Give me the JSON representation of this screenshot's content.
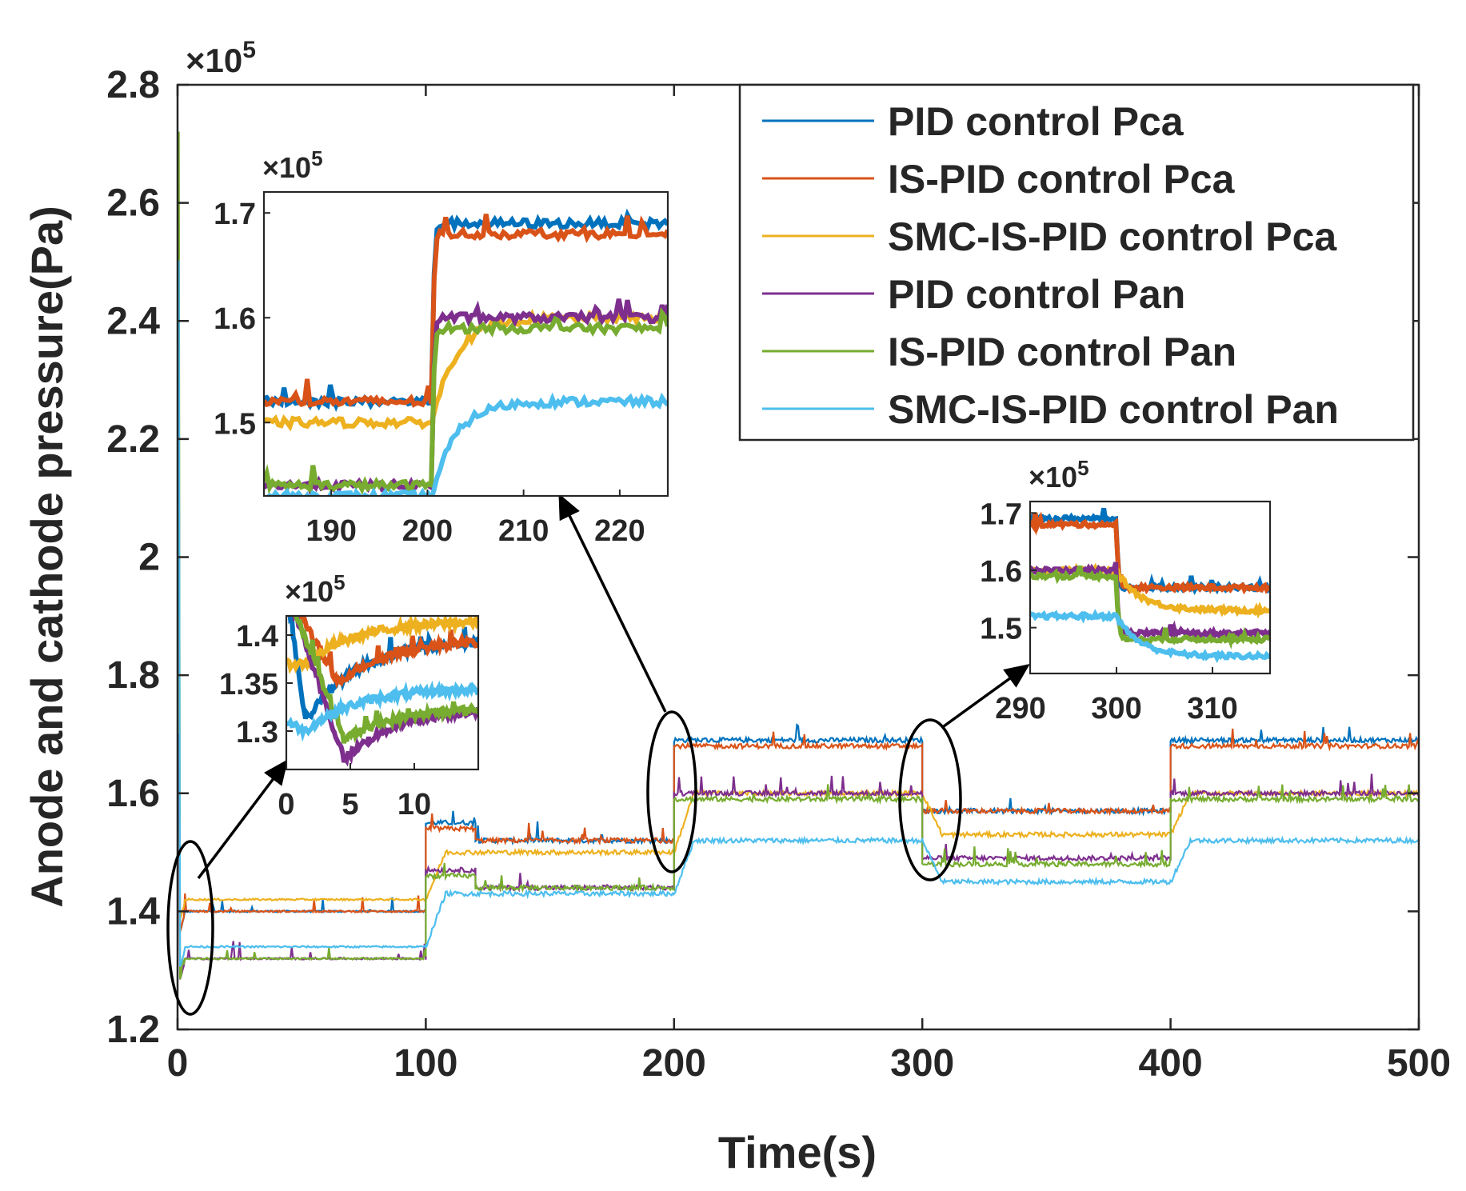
{
  "chart_data": {
    "type": "line",
    "xlabel": "Time(s)",
    "ylabel": "Anode and cathode pressure(Pa)",
    "exponent_label": "×10",
    "exponent_power": "5",
    "xlim": [
      0,
      500
    ],
    "ylim": [
      1.2,
      2.8
    ],
    "xticks": [
      0,
      100,
      200,
      300,
      400,
      500
    ],
    "yticks": [
      1.2,
      1.4,
      1.6,
      1.8,
      2,
      2.2,
      2.4,
      2.6,
      2.8
    ],
    "xtick_labels": [
      "0",
      "100",
      "200",
      "300",
      "400",
      "500"
    ],
    "ytick_labels": [
      "1.2",
      "1.4",
      "1.6",
      "1.8",
      "2",
      "2.2",
      "2.4",
      "2.6",
      "2.8"
    ],
    "legend_position": "top-right",
    "colors": {
      "PID control Pca": "#0072BD",
      "IS-PID control Pca": "#D95319",
      "SMC-IS-PID control Pca": "#EDB120",
      "PID control Pan": "#7E2F8E",
      "IS-PID control Pan": "#77AC30",
      "SMC-IS-PID control Pan": "#4DBEEE"
    },
    "series": [
      {
        "name": "PID control Pca",
        "segments": [
          [
            0,
            100,
            1.4
          ],
          [
            100,
            120,
            1.55
          ],
          [
            120,
            200,
            1.52
          ],
          [
            200,
            300,
            1.69
          ],
          [
            300,
            400,
            1.57
          ],
          [
            400,
            500,
            1.69
          ]
        ]
      },
      {
        "name": "IS-PID control Pca",
        "segments": [
          [
            0,
            100,
            1.4
          ],
          [
            100,
            120,
            1.54
          ],
          [
            120,
            200,
            1.52
          ],
          [
            200,
            300,
            1.68
          ],
          [
            300,
            400,
            1.57
          ],
          [
            400,
            500,
            1.68
          ]
        ]
      },
      {
        "name": "SMC-IS-PID control Pca",
        "segments": [
          [
            0,
            100,
            1.42
          ],
          [
            100,
            200,
            1.5
          ],
          [
            200,
            300,
            1.6
          ],
          [
            300,
            400,
            1.53
          ],
          [
            400,
            500,
            1.6
          ]
        ]
      },
      {
        "name": "PID control Pan",
        "segments": [
          [
            0,
            100,
            1.32
          ],
          [
            100,
            120,
            1.47
          ],
          [
            120,
            200,
            1.44
          ],
          [
            200,
            300,
            1.6
          ],
          [
            300,
            400,
            1.49
          ],
          [
            400,
            500,
            1.6
          ]
        ]
      },
      {
        "name": "IS-PID control Pan",
        "segments": [
          [
            0,
            100,
            1.32
          ],
          [
            100,
            120,
            1.46
          ],
          [
            120,
            200,
            1.44
          ],
          [
            200,
            300,
            1.59
          ],
          [
            300,
            400,
            1.48
          ],
          [
            400,
            500,
            1.59
          ]
        ]
      },
      {
        "name": "SMC-IS-PID control Pan",
        "segments": [
          [
            0,
            100,
            1.34
          ],
          [
            100,
            200,
            1.43
          ],
          [
            200,
            300,
            1.52
          ],
          [
            300,
            400,
            1.45
          ],
          [
            400,
            500,
            1.52
          ]
        ]
      }
    ],
    "insets": [
      {
        "id": "inset-start",
        "xlim": [
          0,
          15
        ],
        "ylim": [
          1.26,
          1.42
        ],
        "xticks": [
          0,
          5,
          10
        ],
        "xtick_labels": [
          "0",
          "5",
          "10"
        ],
        "yticks": [
          1.3,
          1.35,
          1.4
        ],
        "ytick_labels": [
          "1.3",
          "1.35",
          "1.4"
        ],
        "exponent_label": "×10",
        "exponent_power": "5",
        "step_time": 0,
        "levels_before": [
          1.45,
          1.45,
          1.37,
          1.45,
          1.45,
          1.31
        ],
        "levels_after": [
          1.395,
          1.395,
          1.415,
          1.325,
          1.325,
          1.345
        ],
        "dips": [
          1.31,
          1.35,
          1.37,
          1.27,
          1.29,
          1.3
        ]
      },
      {
        "id": "inset-200",
        "xlim": [
          183,
          225
        ],
        "ylim": [
          1.43,
          1.72
        ],
        "xticks": [
          190,
          200,
          210,
          220
        ],
        "xtick_labels": [
          "190",
          "200",
          "210",
          "220"
        ],
        "yticks": [
          1.5,
          1.6,
          1.7
        ],
        "ytick_labels": [
          "1.5",
          "1.6",
          "1.7"
        ],
        "exponent_label": "×10",
        "exponent_power": "5",
        "step_time": 200.5,
        "levels_before": [
          1.52,
          1.52,
          1.5,
          1.44,
          1.44,
          1.43
        ],
        "levels_after": [
          1.69,
          1.68,
          1.6,
          1.6,
          1.59,
          1.52
        ]
      },
      {
        "id": "inset-300",
        "xlim": [
          291,
          316
        ],
        "ylim": [
          1.42,
          1.72
        ],
        "xticks": [
          290,
          300,
          310
        ],
        "xtick_labels": [
          "290",
          "300",
          "310"
        ],
        "yticks": [
          1.5,
          1.6,
          1.7
        ],
        "ytick_labels": [
          "1.5",
          "1.6",
          "1.7"
        ],
        "exponent_label": "×10",
        "exponent_power": "5",
        "step_time": 300,
        "levels_before": [
          1.69,
          1.68,
          1.6,
          1.6,
          1.59,
          1.52
        ],
        "levels_after": [
          1.57,
          1.57,
          1.53,
          1.49,
          1.48,
          1.45
        ]
      }
    ]
  }
}
